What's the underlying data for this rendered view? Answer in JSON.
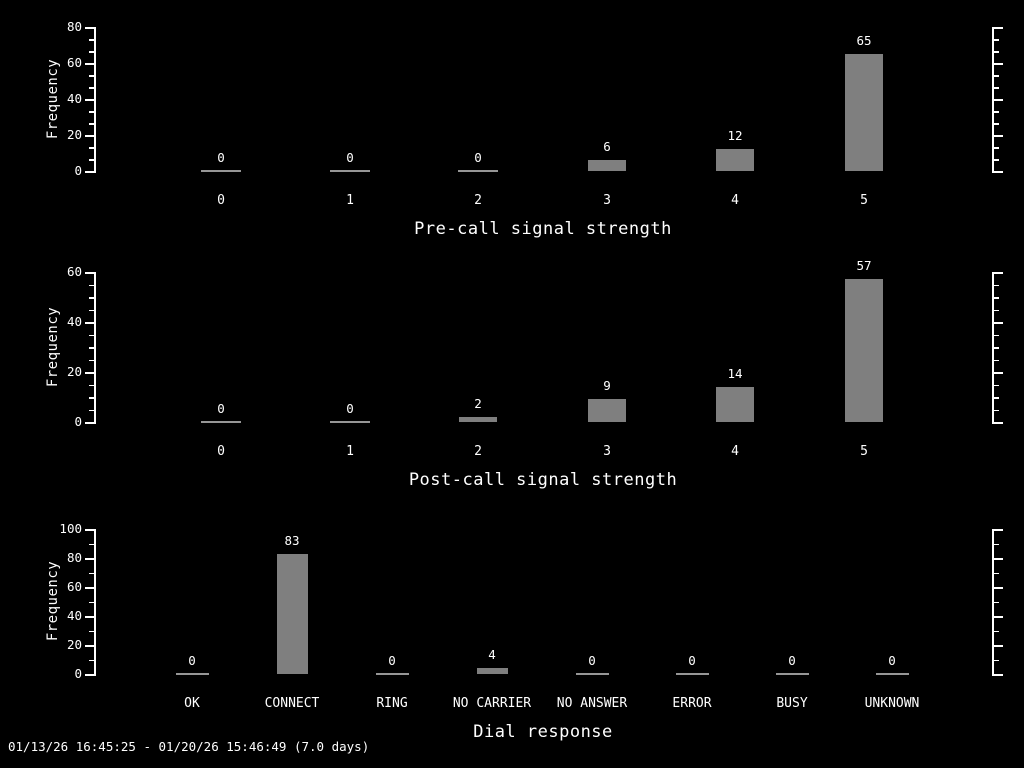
{
  "colors": {
    "background": "#000000",
    "text": "#ffffff",
    "bar": "#7f7f7f",
    "zero_bar": "#969696",
    "axis": "#ffffff"
  },
  "footer": {
    "text": "01/13/26 16:45:25 - 01/20/26 15:46:49 (7.0 days)"
  },
  "chart_data": [
    {
      "type": "bar",
      "xlabel": "Pre-call signal strength",
      "ylabel": "Frequency",
      "categories": [
        "0",
        "1",
        "2",
        "3",
        "4",
        "5"
      ],
      "values": [
        0,
        0,
        0,
        6,
        12,
        65
      ],
      "ylim": [
        0,
        80
      ],
      "yticks": [
        0,
        20,
        40,
        60,
        80
      ],
      "grid": false,
      "legend": "none",
      "bar_value_labels": true
    },
    {
      "type": "bar",
      "xlabel": "Post-call signal strength",
      "ylabel": "Frequency",
      "categories": [
        "0",
        "1",
        "2",
        "3",
        "4",
        "5"
      ],
      "values": [
        0,
        0,
        2,
        9,
        14,
        57
      ],
      "ylim": [
        0,
        60
      ],
      "yticks": [
        0,
        20,
        40,
        60
      ],
      "grid": false,
      "legend": "none",
      "bar_value_labels": true
    },
    {
      "type": "bar",
      "xlabel": "Dial response",
      "ylabel": "Frequency",
      "categories": [
        "OK",
        "CONNECT",
        "RING",
        "NO CARRIER",
        "NO ANSWER",
        "ERROR",
        "BUSY",
        "UNKNOWN"
      ],
      "values": [
        0,
        83,
        0,
        4,
        0,
        0,
        0,
        0
      ],
      "ylim": [
        0,
        100
      ],
      "yticks": [
        0,
        20,
        40,
        60,
        80,
        100
      ],
      "grid": false,
      "legend": "none",
      "bar_value_labels": true
    }
  ]
}
